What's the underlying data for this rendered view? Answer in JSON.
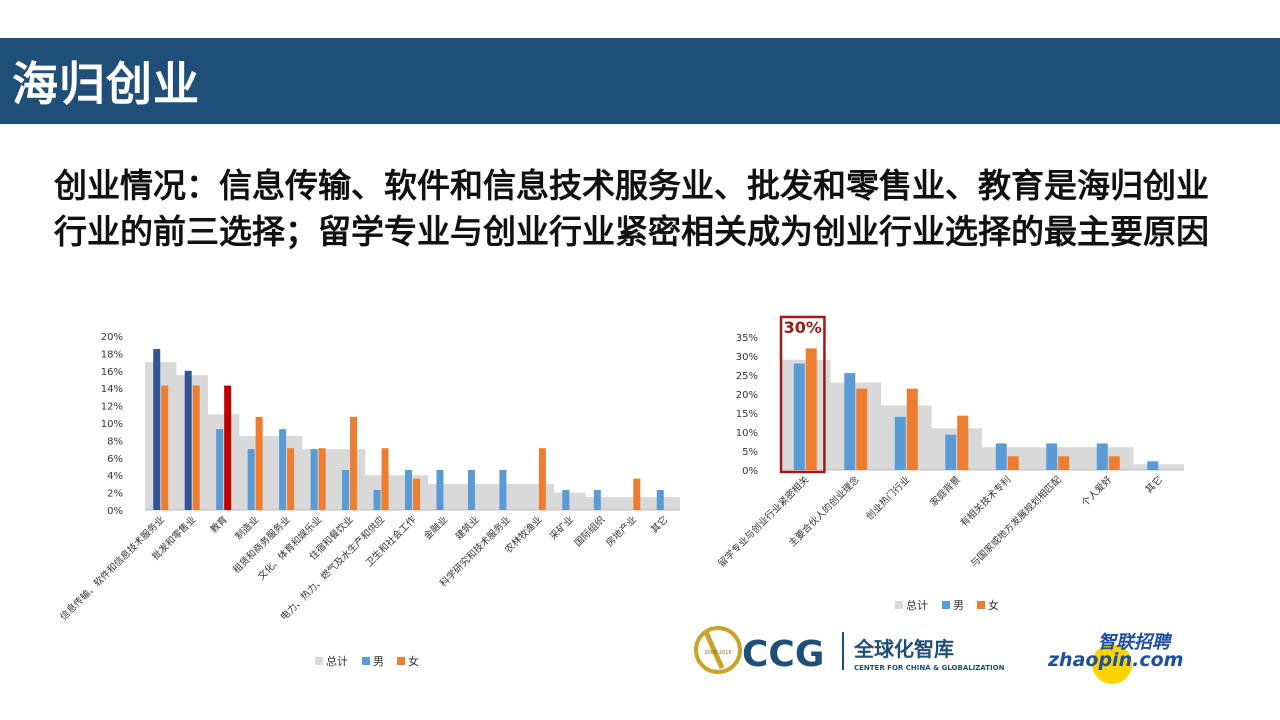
{
  "header": {
    "title": "海归创业"
  },
  "headline": "创业情况：信息传输、软件和信息技术服务业、批发和零售业、教育是海归创业行业的前三选择；留学专业与创业行业紧密相关成为创业行业选择的最主要原因",
  "colors": {
    "header_bg": "#1f4e79",
    "total": "#d9d9d9",
    "male": "#5b9bd5",
    "male_dark": "#2f5597",
    "female": "#ed7d31",
    "highlight_red": "#c00000",
    "box_border": "#9b1b1b"
  },
  "chart_data": [
    {
      "type": "bar",
      "categories": [
        "信息传输、软件和信息技术服务业",
        "批发和零售业",
        "教育",
        "制造业",
        "租赁和商务服务业",
        "文化、体育和娱乐业",
        "住宿和餐饮业",
        "电力、热力、燃气及水生产和供应",
        "卫生和社会工作",
        "金融业",
        "建筑业",
        "科学研究和技术服务业",
        "农林牧渔业",
        "采矿业",
        "国际组织",
        "房地产业",
        "其它"
      ],
      "series": [
        {
          "name": "总计",
          "type": "area",
          "values": [
            17,
            15.5,
            11,
            8.5,
            8.5,
            7,
            7,
            4,
            4,
            3,
            3,
            3,
            3,
            2,
            1.5,
            1.5,
            1.5
          ]
        },
        {
          "name": "男",
          "values": [
            18.5,
            16,
            9.3,
            7,
            9.3,
            7,
            4.6,
            2.3,
            4.6,
            4.6,
            4.6,
            4.6,
            0,
            2.3,
            2.3,
            0,
            2.3
          ]
        },
        {
          "name": "女",
          "values": [
            14.3,
            14.3,
            14.3,
            10.7,
            7.1,
            7.1,
            10.7,
            7.1,
            3.6,
            0,
            0,
            0,
            7.1,
            0,
            0,
            3.6,
            0
          ]
        }
      ],
      "ylim": [
        0,
        20
      ],
      "yticks": [
        "0%",
        "2%",
        "4%",
        "6%",
        "8%",
        "10%",
        "12%",
        "14%",
        "16%",
        "18%",
        "20%"
      ],
      "legend": [
        "总计",
        "男",
        "女"
      ],
      "legend_position": "bottom",
      "grid": false
    },
    {
      "type": "bar",
      "categories": [
        "留学专业与创业行业紧密相关",
        "主要合伙人的创业理念",
        "创业热门行业",
        "家庭背景",
        "有相关技术专利",
        "与国家或地方发展规划相匹配",
        "个人爱好",
        "其它"
      ],
      "series": [
        {
          "name": "总计",
          "type": "area",
          "values": [
            29,
            23,
            17,
            11,
            6,
            6,
            6,
            1.5
          ]
        },
        {
          "name": "男",
          "values": [
            28,
            25.5,
            14,
            9.3,
            7,
            7,
            7,
            2.3
          ]
        },
        {
          "name": "女",
          "values": [
            32,
            21.4,
            21.4,
            14.3,
            3.6,
            3.6,
            3.6,
            0
          ]
        }
      ],
      "ylim": [
        0,
        35
      ],
      "yticks": [
        "0%",
        "5%",
        "10%",
        "15%",
        "20%",
        "25%",
        "30%",
        "35%"
      ],
      "annotation": "30%",
      "legend": [
        "总计",
        "男",
        "女"
      ],
      "legend_position": "bottom",
      "grid": false
    }
  ],
  "logos": {
    "ccg_badge": "2008-2018",
    "ccg_name": "CCG",
    "ccg_cn": "全球化智库",
    "ccg_en": "CENTER FOR CHINA & GLOBALIZATION",
    "zhaopin_cn": "智联招聘",
    "zhaopin_en": "zhaopin.com"
  }
}
